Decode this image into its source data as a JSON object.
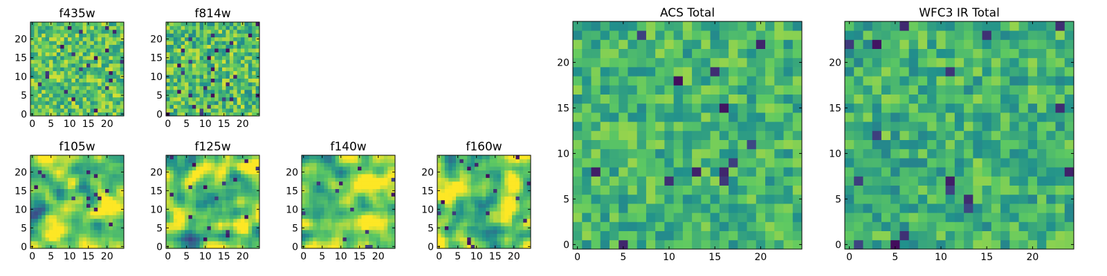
{
  "figure_title": "",
  "colormap": "viridis",
  "colormap_stops": [
    "#440154",
    "#3b528b",
    "#21918c",
    "#5ec962",
    "#fde725"
  ],
  "chart_data": [
    {
      "type": "heatmap",
      "title": "f435w",
      "grid_size": 25,
      "xlim": [
        0,
        24
      ],
      "ylim": [
        0,
        24
      ],
      "xticks": [
        0,
        5,
        10,
        15,
        20
      ],
      "yticks": [
        0,
        5,
        10,
        15,
        20
      ],
      "seed": 435,
      "smooth": 0,
      "median": 0.72,
      "spread": 0.13,
      "dark_fraction": 0.03
    },
    {
      "type": "heatmap",
      "title": "f814w",
      "grid_size": 25,
      "xlim": [
        0,
        24
      ],
      "ylim": [
        0,
        24
      ],
      "xticks": [
        0,
        5,
        10,
        15,
        20
      ],
      "yticks": [
        0,
        5,
        10,
        15,
        20
      ],
      "seed": 814,
      "smooth": 0,
      "median": 0.7,
      "spread": 0.14,
      "dark_fraction": 0.035
    },
    {
      "type": "heatmap",
      "title": "f105w",
      "grid_size": 25,
      "xlim": [
        0,
        24
      ],
      "ylim": [
        0,
        24
      ],
      "xticks": [
        0,
        5,
        10,
        15,
        20
      ],
      "yticks": [
        0,
        5,
        10,
        15,
        20
      ],
      "seed": 105,
      "smooth": 2,
      "median": 0.76,
      "spread": 0.16,
      "dark_fraction": 0.02
    },
    {
      "type": "heatmap",
      "title": "f125w",
      "grid_size": 25,
      "xlim": [
        0,
        24
      ],
      "ylim": [
        0,
        24
      ],
      "xticks": [
        0,
        5,
        10,
        15,
        20
      ],
      "yticks": [
        0,
        5,
        10,
        15,
        20
      ],
      "seed": 125,
      "smooth": 2,
      "median": 0.74,
      "spread": 0.17,
      "dark_fraction": 0.02
    },
    {
      "type": "heatmap",
      "title": "f140w",
      "grid_size": 25,
      "xlim": [
        0,
        24
      ],
      "ylim": [
        0,
        24
      ],
      "xticks": [
        0,
        5,
        10,
        15,
        20
      ],
      "yticks": [
        0,
        5,
        10,
        15,
        20
      ],
      "seed": 140,
      "smooth": 2,
      "median": 0.78,
      "spread": 0.15,
      "dark_fraction": 0.015
    },
    {
      "type": "heatmap",
      "title": "f160w",
      "grid_size": 25,
      "xlim": [
        0,
        24
      ],
      "ylim": [
        0,
        24
      ],
      "xticks": [
        0,
        5,
        10,
        15,
        20
      ],
      "yticks": [
        0,
        5,
        10,
        15,
        20
      ],
      "seed": 160,
      "smooth": 2,
      "median": 0.75,
      "spread": 0.17,
      "dark_fraction": 0.02
    },
    {
      "type": "heatmap",
      "title": "ACS Total",
      "grid_size": 25,
      "xlim": [
        0,
        24
      ],
      "ylim": [
        0,
        24
      ],
      "xticks": [
        0,
        5,
        10,
        15,
        20
      ],
      "yticks": [
        0,
        5,
        10,
        15,
        20
      ],
      "seed": 901,
      "smooth": 0,
      "median": 0.66,
      "spread": 0.11,
      "dark_fraction": 0.03
    },
    {
      "type": "heatmap",
      "title": "WFC3 IR Total",
      "grid_size": 25,
      "xlim": [
        0,
        24
      ],
      "ylim": [
        0,
        24
      ],
      "xticks": [
        0,
        5,
        10,
        15,
        20
      ],
      "yticks": [
        0,
        5,
        10,
        15,
        20
      ],
      "seed": 902,
      "smooth": 0,
      "median": 0.64,
      "spread": 0.11,
      "dark_fraction": 0.03
    }
  ]
}
